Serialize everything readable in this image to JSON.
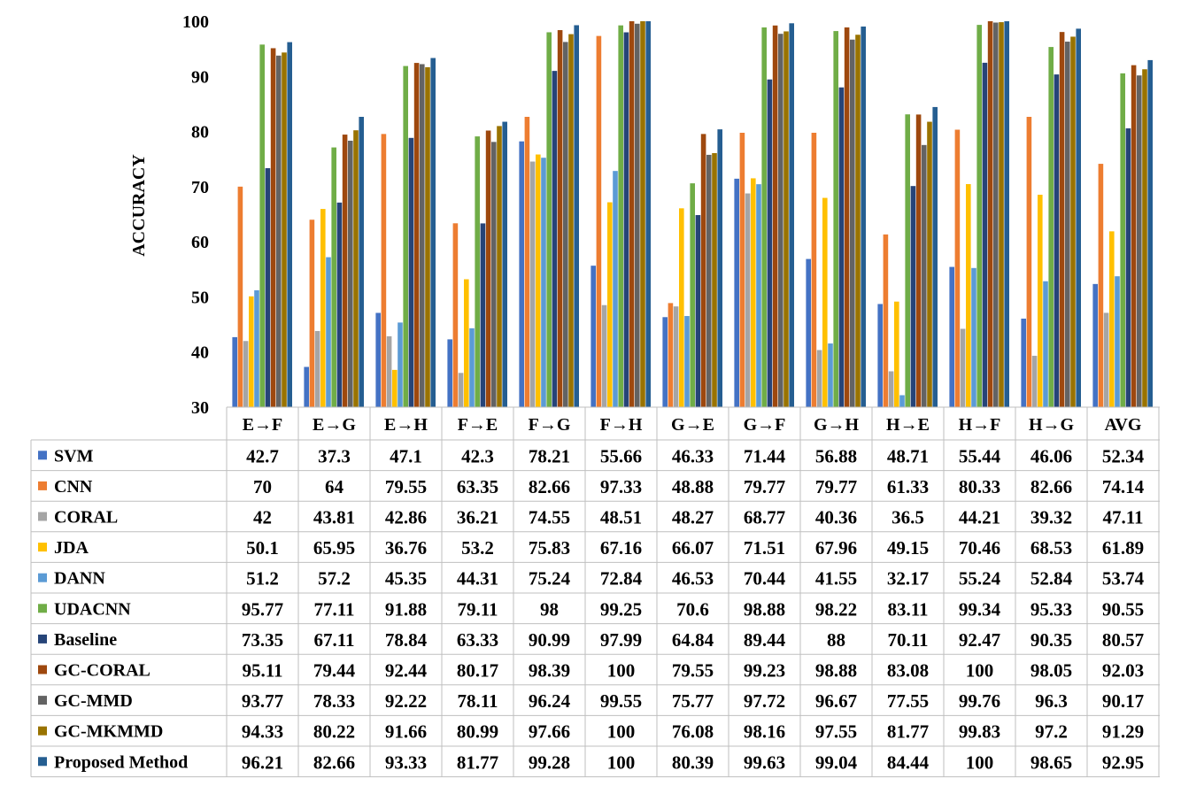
{
  "chart_data": {
    "type": "bar",
    "title": "",
    "xlabel": "",
    "ylabel": "ACCURACY",
    "ylim": [
      30,
      100
    ],
    "yticks": [
      30,
      40,
      50,
      60,
      70,
      80,
      90,
      100
    ],
    "grid": false,
    "legend": "data-table",
    "categories": [
      "E→F",
      "E→G",
      "E→H",
      "F→E",
      "F→G",
      "F→H",
      "G→E",
      "G→F",
      "G→H",
      "H→E",
      "H→F",
      "H→G",
      "AVG"
    ],
    "series": [
      {
        "name": "SVM",
        "color": "#4472C4",
        "values": [
          42.7,
          37.3,
          47.1,
          42.3,
          78.21,
          55.66,
          46.33,
          71.44,
          56.88,
          48.71,
          55.44,
          46.06,
          52.34
        ]
      },
      {
        "name": "CNN",
        "color": "#ED7D31",
        "values": [
          70,
          64,
          79.55,
          63.35,
          82.66,
          97.33,
          48.88,
          79.77,
          79.77,
          61.33,
          80.33,
          82.66,
          74.14
        ]
      },
      {
        "name": "CORAL",
        "color": "#A5A5A5",
        "values": [
          42,
          43.81,
          42.86,
          36.21,
          74.55,
          48.51,
          48.27,
          68.77,
          40.36,
          36.5,
          44.21,
          39.32,
          47.11
        ]
      },
      {
        "name": "JDA",
        "color": "#FFC000",
        "values": [
          50.1,
          65.95,
          36.76,
          53.2,
          75.83,
          67.16,
          66.07,
          71.51,
          67.96,
          49.15,
          70.46,
          68.53,
          61.89
        ]
      },
      {
        "name": "DANN",
        "color": "#5B9BD5",
        "values": [
          51.2,
          57.2,
          45.35,
          44.31,
          75.24,
          72.84,
          46.53,
          70.44,
          41.55,
          32.17,
          55.24,
          52.84,
          53.74
        ]
      },
      {
        "name": "UDACNN",
        "color": "#70AD47",
        "values": [
          95.77,
          77.11,
          91.88,
          79.11,
          98,
          99.25,
          70.6,
          98.88,
          98.22,
          83.11,
          99.34,
          95.33,
          90.55
        ]
      },
      {
        "name": "Baseline",
        "color": "#264478",
        "values": [
          73.35,
          67.11,
          78.84,
          63.33,
          90.99,
          97.99,
          64.84,
          89.44,
          88,
          70.11,
          92.47,
          90.35,
          80.57
        ]
      },
      {
        "name": "GC-CORAL",
        "color": "#9E480E",
        "values": [
          95.11,
          79.44,
          92.44,
          80.17,
          98.39,
          100,
          79.55,
          99.23,
          98.88,
          83.08,
          100,
          98.05,
          92.03
        ]
      },
      {
        "name": "GC-MMD",
        "color": "#636363",
        "values": [
          93.77,
          78.33,
          92.22,
          78.11,
          96.24,
          99.55,
          75.77,
          97.72,
          96.67,
          77.55,
          99.76,
          96.3,
          90.17
        ]
      },
      {
        "name": "GC-MKMMD",
        "color": "#997300",
        "values": [
          94.33,
          80.22,
          91.66,
          80.99,
          97.66,
          100,
          76.08,
          98.16,
          97.55,
          81.77,
          99.83,
          97.2,
          91.29
        ]
      },
      {
        "name": "Proposed Method",
        "color": "#255E91",
        "values": [
          96.21,
          82.66,
          93.33,
          81.77,
          99.28,
          100,
          80.39,
          99.63,
          99.04,
          84.44,
          100,
          98.65,
          92.95
        ]
      }
    ]
  },
  "cell_text": [
    [
      "42.7",
      "37.3",
      "47.1",
      "42.3",
      "78.21",
      "55.66",
      "46.33",
      "71.44",
      "56.88",
      "48.71",
      "55.44",
      "46.06",
      "52.34"
    ],
    [
      "70",
      "64",
      "79.55",
      "63.35",
      "82.66",
      "97.33",
      "48.88",
      "79.77",
      "79.77",
      "61.33",
      "80.33",
      "82.66",
      "74.14"
    ],
    [
      "42",
      "43.81",
      "42.86",
      "36.21",
      "74.55",
      "48.51",
      "48.27",
      "68.77",
      "40.36",
      "36.5",
      "44.21",
      "39.32",
      "47.11"
    ],
    [
      "50.1",
      "65.95",
      "36.76",
      "53.2",
      "75.83",
      "67.16",
      "66.07",
      "71.51",
      "67.96",
      "49.15",
      "70.46",
      "68.53",
      "61.89"
    ],
    [
      "51.2",
      "57.2",
      "45.35",
      "44.31",
      "75.24",
      "72.84",
      "46.53",
      "70.44",
      "41.55",
      "32.17",
      "55.24",
      "52.84",
      "53.74"
    ],
    [
      "95.77",
      "77.11",
      "91.88",
      "79.11",
      "98",
      "99.25",
      "70.6",
      "98.88",
      "98.22",
      "83.11",
      "99.34",
      "95.33",
      "90.55"
    ],
    [
      "73.35",
      "67.11",
      "78.84",
      "63.33",
      "90.99",
      "97.99",
      "64.84",
      "89.44",
      "88",
      "70.11",
      "92.47",
      "90.35",
      "80.57"
    ],
    [
      "95.11",
      "79.44",
      "92.44",
      "80.17",
      "98.39",
      "100",
      "79.55",
      "99.23",
      "98.88",
      "83.08",
      "100",
      "98.05",
      "92.03"
    ],
    [
      "93.77",
      "78.33",
      "92.22",
      "78.11",
      "96.24",
      "99.55",
      "75.77",
      "97.72",
      "96.67",
      "77.55",
      "99.76",
      "96.3",
      "90.17"
    ],
    [
      "94.33",
      "80.22",
      "91.66",
      "80.99",
      "97.66",
      "100",
      "76.08",
      "98.16",
      "97.55",
      "81.77",
      "99.83",
      "97.2",
      "91.29"
    ],
    [
      "96.21",
      "82.66",
      "93.33",
      "81.77",
      "99.28",
      "100",
      "80.39",
      "99.63",
      "99.04",
      "84.44",
      "100",
      "98.65",
      "92.95"
    ]
  ]
}
